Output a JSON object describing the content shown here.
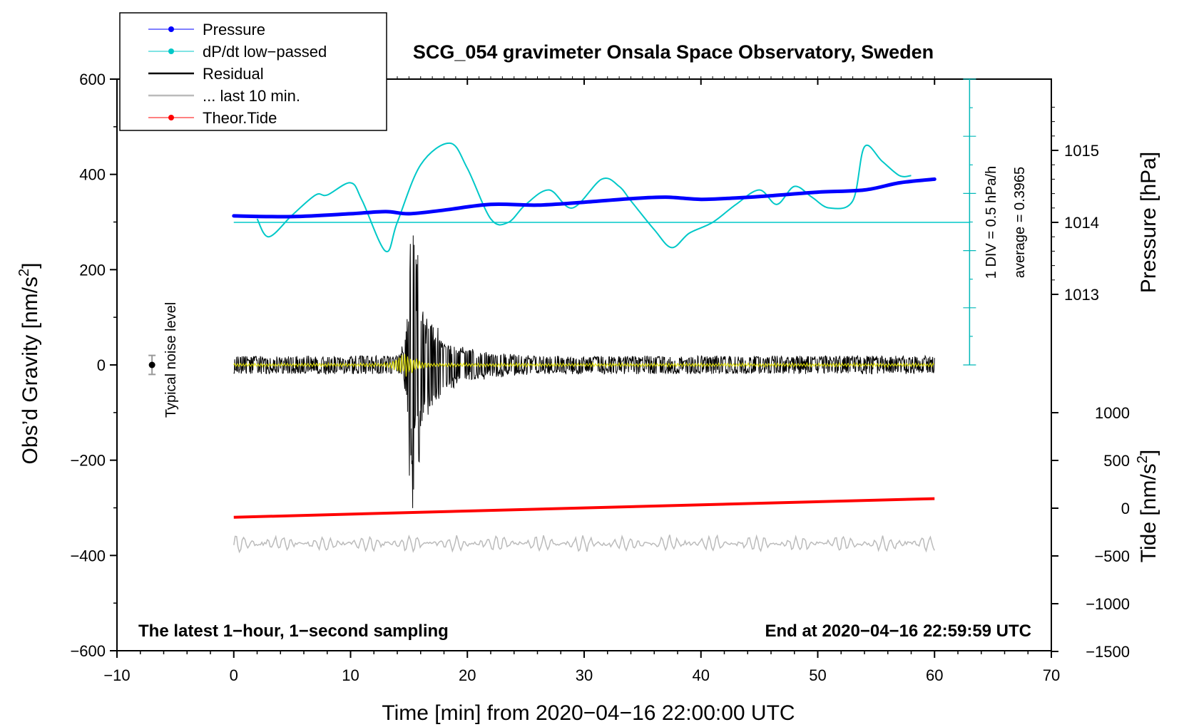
{
  "chart_data": {
    "type": "line",
    "title": "SCG_054 gravimeter Onsala Space Observatory, Sweden",
    "xlabel": "Time [min] from 2020−04−16 22:00:00 UTC",
    "ylabel_left_main": "Obs’d Gravity [nm/s",
    "ylabel_left_sup": "2",
    "ylabel_left_end": "]",
    "ylabel_right_pressure": "Pressure [hPa]",
    "ylabel_right_tide_main": "Tide [nm/s",
    "ylabel_right_tide_sup": "2",
    "ylabel_right_tide_end": "]",
    "xlim": [
      -10,
      70
    ],
    "ylim_gravity": [
      -600,
      600
    ],
    "ylim_pressure": [
      1012,
      1016
    ],
    "ylim_tide": [
      -1500,
      1000
    ],
    "x_ticks": [
      -10,
      0,
      10,
      20,
      30,
      40,
      50,
      60,
      70
    ],
    "x_tick_labels": [
      "−10",
      "0",
      "10",
      "20",
      "30",
      "40",
      "50",
      "60",
      "70"
    ],
    "y_ticks_gravity": [
      -600,
      -400,
      -200,
      0,
      200,
      400,
      600
    ],
    "y_tick_labels_gravity": [
      "−600",
      "−400",
      "−200",
      "0",
      "200",
      "400",
      "600"
    ],
    "y_ticks_pressure": [
      1013,
      1014,
      1015
    ],
    "y_tick_labels_pressure": [
      "1013",
      "1014",
      "1015"
    ],
    "y_ticks_tide": [
      -1500,
      -1000,
      -500,
      0,
      500,
      1000
    ],
    "y_tick_labels_tide": [
      "−1500",
      "−1000",
      "−500",
      "0",
      "500",
      "1000"
    ],
    "legend": [
      {
        "label": "Pressure",
        "color": "#0000ff",
        "marker": "dot"
      },
      {
        "label": "dP/dt low−passed",
        "color": "#00c8c8",
        "marker": "dot"
      },
      {
        "label": "Residual",
        "color": "#000000",
        "marker": "line"
      },
      {
        "label": "... last 10 min.",
        "color": "#bbbbbb",
        "marker": "line"
      },
      {
        "label": "Theor.Tide",
        "color": "#ff0000",
        "marker": "dot"
      }
    ],
    "legend_position": "top-left",
    "annotations": {
      "bottom_left": "The latest 1−hour, 1−second sampling",
      "bottom_right": "End at 2020−04−16 22:59:59 UTC",
      "noise_label": "Typical noise level",
      "scale_div": "1 DIV = 0.5 hPa/h",
      "scale_avg": "average = 0.3965"
    },
    "series": [
      {
        "name": "Pressure",
        "axis": "pressure",
        "color": "#0000ff",
        "x": [
          0,
          5,
          10,
          13,
          15,
          18,
          22,
          26,
          30,
          34,
          37,
          40,
          43,
          46,
          50,
          54,
          57,
          60
        ],
        "y": [
          1014.09,
          1014.08,
          1014.12,
          1014.15,
          1014.12,
          1014.17,
          1014.25,
          1014.24,
          1014.28,
          1014.33,
          1014.35,
          1014.32,
          1014.34,
          1014.37,
          1014.42,
          1014.45,
          1014.55,
          1014.6
        ]
      },
      {
        "name": "dP/dt low-passed",
        "axis": "dpdt",
        "color": "#00c8c8",
        "baseline_value": 1014,
        "x": [
          2,
          3,
          5,
          7,
          8,
          10,
          11,
          13,
          14,
          16,
          18.5,
          20,
          22,
          23.5,
          25,
          27,
          29,
          31.5,
          33,
          34,
          36,
          37.5,
          39,
          41,
          43,
          45,
          46.5,
          48,
          49.5,
          51,
          53,
          54,
          55.5,
          57,
          58
        ],
        "y": [
          1014.05,
          1013.8,
          1014.1,
          1014.38,
          1014.38,
          1014.55,
          1014.3,
          1013.6,
          1014.0,
          1014.8,
          1015.1,
          1014.75,
          1014.05,
          1014.0,
          1014.25,
          1014.45,
          1014.2,
          1014.6,
          1014.5,
          1014.3,
          1013.9,
          1013.65,
          1013.85,
          1014.0,
          1014.25,
          1014.45,
          1014.25,
          1014.5,
          1014.35,
          1014.2,
          1014.3,
          1015.05,
          1014.85,
          1014.65,
          1014.65
        ]
      },
      {
        "name": "Residual",
        "axis": "gravity",
        "color": "#000000",
        "x_range": [
          0,
          60
        ],
        "noise_amplitude": 12,
        "event_center_min": 15.3,
        "event_peak": 285,
        "event_min": -290
      },
      {
        "name": "... last 10 min.",
        "axis": "gravity",
        "color": "#bbbbbb",
        "x_range": [
          0,
          60
        ],
        "offset": -375,
        "amplitude": 12
      },
      {
        "name": "Theor.Tide",
        "axis": "tide",
        "color": "#ff0000",
        "x": [
          0,
          60
        ],
        "y": [
          -95,
          100
        ]
      }
    ],
    "noise_level": {
      "x": -7,
      "y": 0,
      "error": 20
    }
  }
}
